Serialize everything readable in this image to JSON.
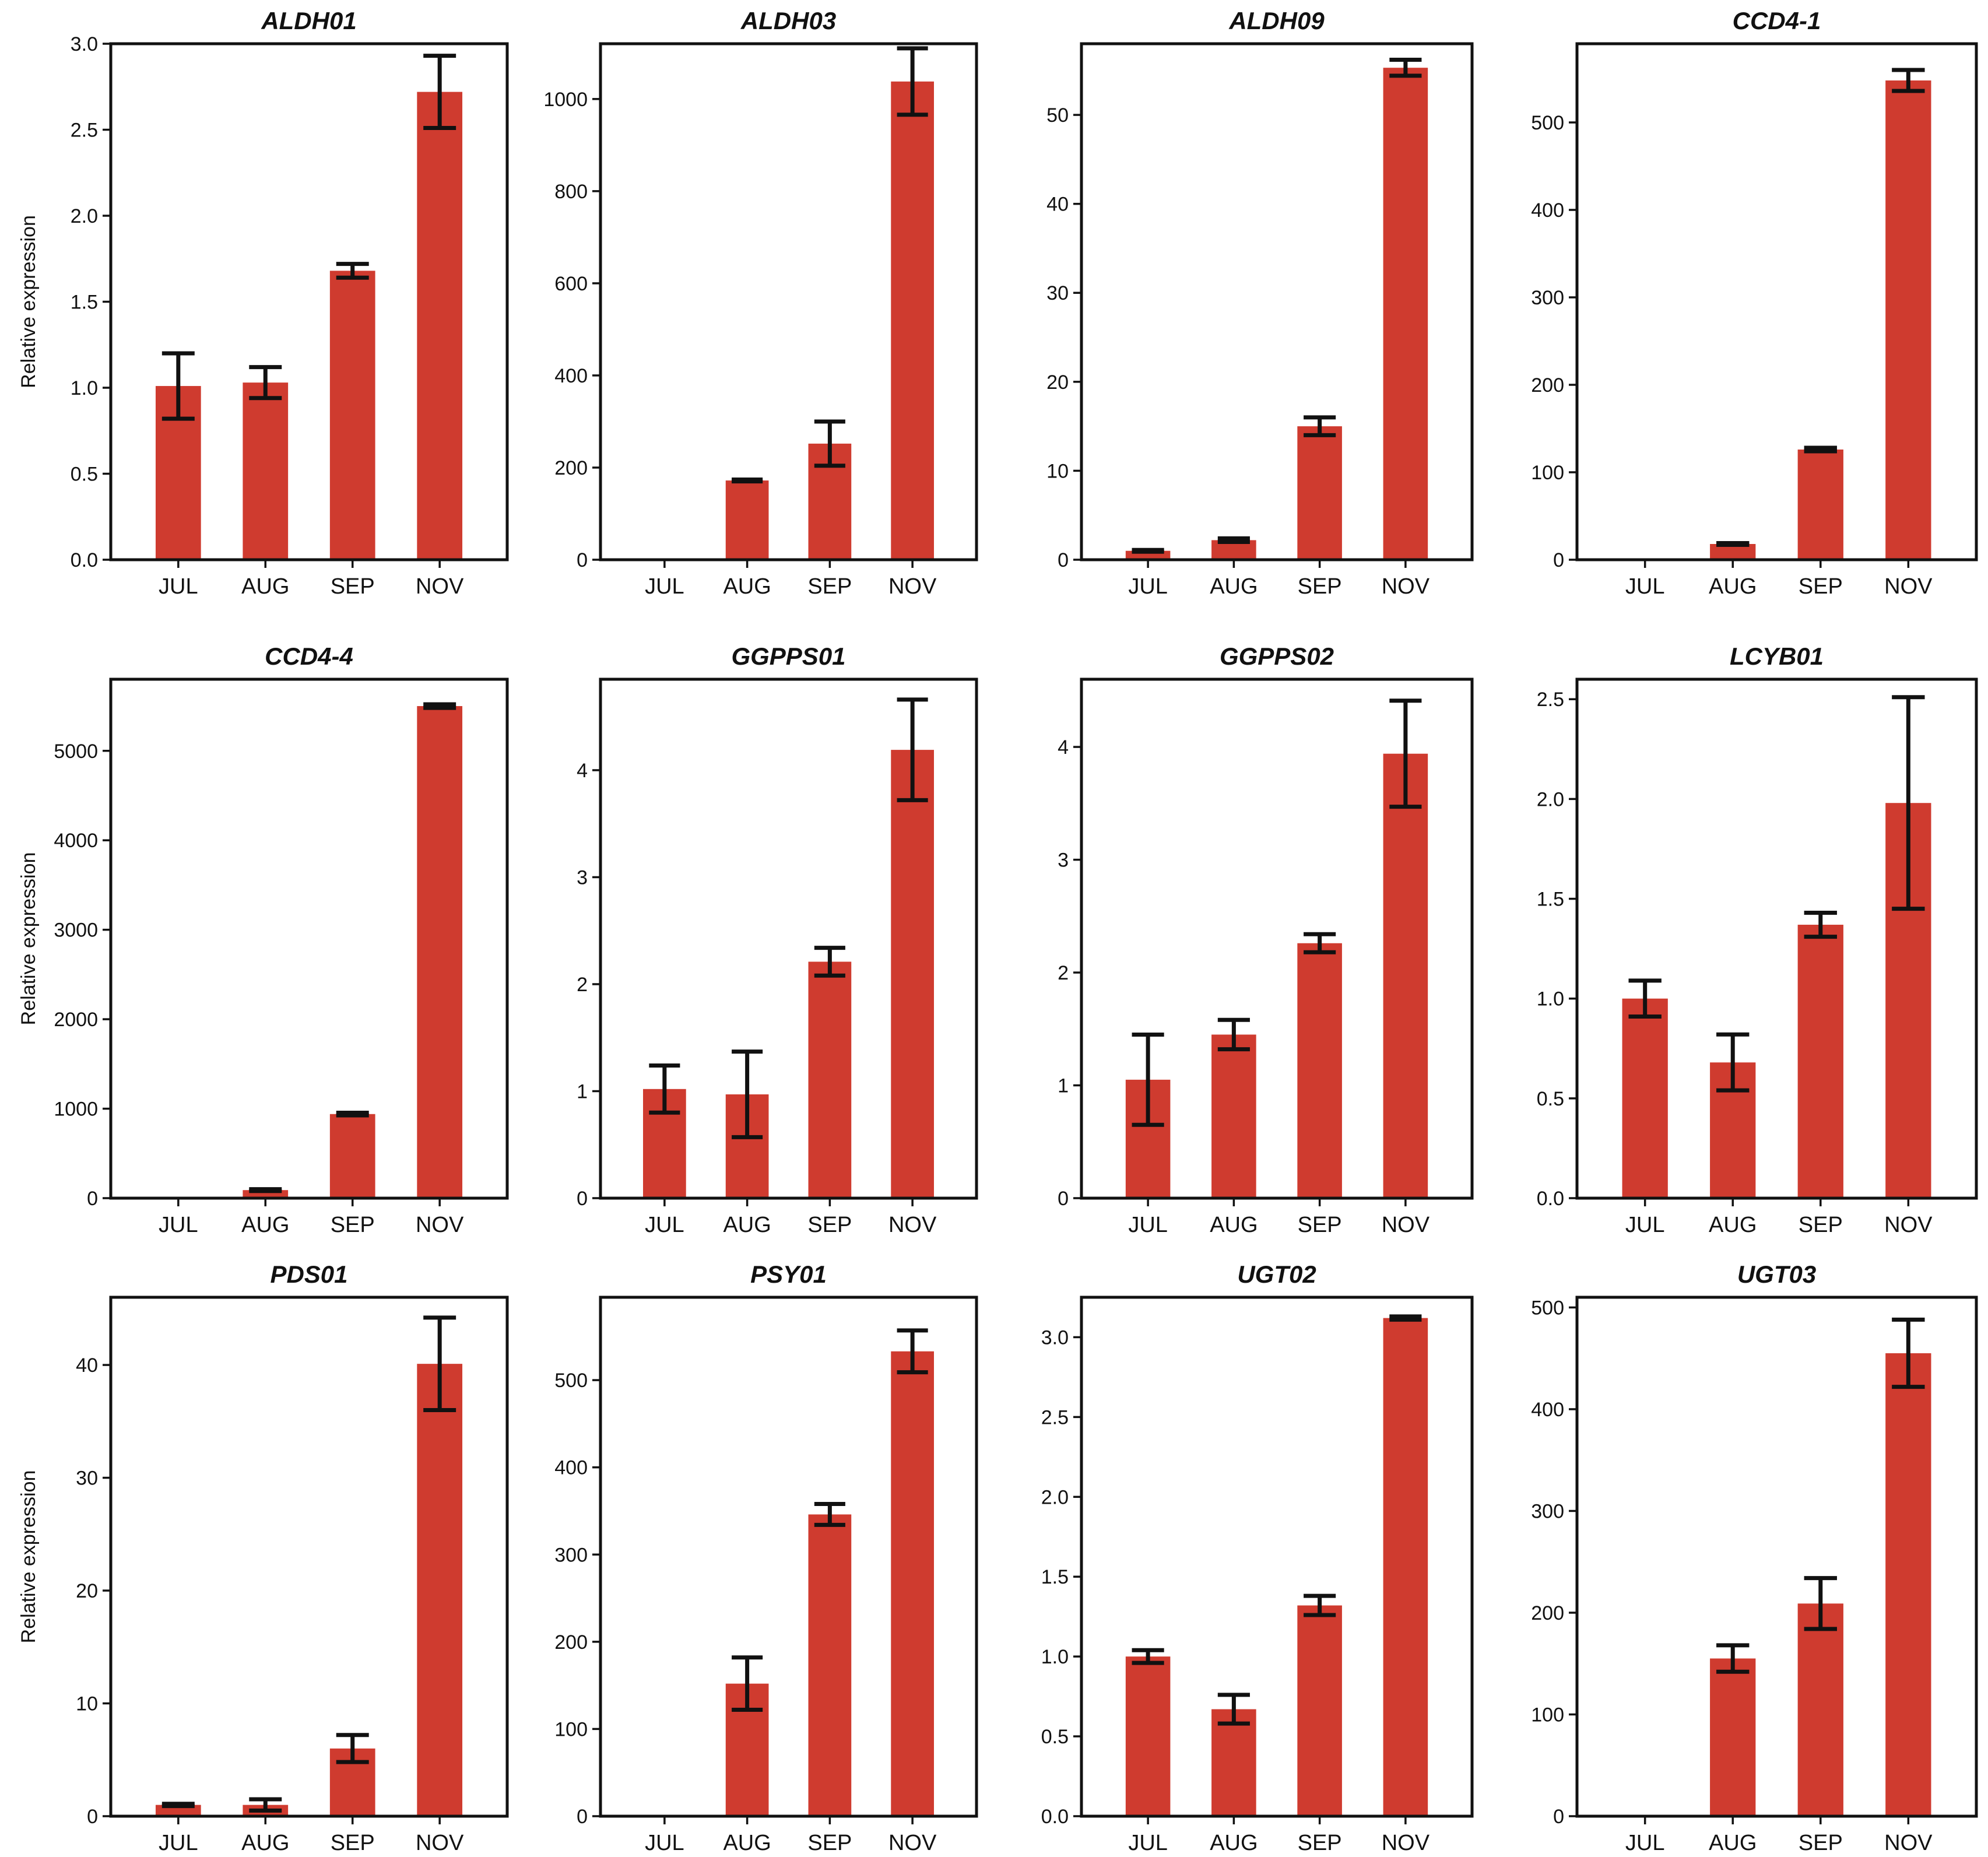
{
  "figure": {
    "bar_color": "#cf3b2f",
    "axis_color": "#111111",
    "categories": [
      "JUL",
      "AUG",
      "SEP",
      "NOV"
    ],
    "ylabel": "Relative expression"
  },
  "chart_data": [
    {
      "type": "bar",
      "title": "ALDH01",
      "ylabel": "Relative expression",
      "categories": [
        "JUL",
        "AUG",
        "SEP",
        "NOV"
      ],
      "values": [
        1.01,
        1.03,
        1.68,
        2.72
      ],
      "errors": [
        0.19,
        0.09,
        0.04,
        0.21
      ],
      "ylim": [
        0,
        3.0
      ],
      "yticks": [
        0.0,
        0.5,
        1.0,
        1.5,
        2.0,
        2.5,
        3.0
      ],
      "ytick_labels": [
        "0.0",
        "0.5",
        "1.0",
        "1.5",
        "2.0",
        "2.5",
        "3.0"
      ]
    },
    {
      "type": "bar",
      "title": "ALDH03",
      "ylabel": "",
      "categories": [
        "JUL",
        "AUG",
        "SEP",
        "NOV"
      ],
      "values": [
        1,
        172,
        252,
        1038
      ],
      "errors": [
        0,
        2,
        48,
        72
      ],
      "ylim": [
        0,
        1120
      ],
      "yticks": [
        0,
        200,
        400,
        600,
        800,
        1000
      ],
      "ytick_labels": [
        "0",
        "200",
        "400",
        "600",
        "800",
        "1000"
      ]
    },
    {
      "type": "bar",
      "title": "ALDH09",
      "ylabel": "",
      "categories": [
        "JUL",
        "AUG",
        "SEP",
        "NOV"
      ],
      "values": [
        1.0,
        2.2,
        15.0,
        55.3
      ],
      "errors": [
        0.1,
        0.2,
        1.0,
        0.9
      ],
      "ylim": [
        0,
        58
      ],
      "yticks": [
        0,
        10,
        20,
        30,
        40,
        50
      ],
      "ytick_labels": [
        "0",
        "10",
        "20",
        "30",
        "40",
        "50"
      ]
    },
    {
      "type": "bar",
      "title": "CCD4-1",
      "ylabel": "",
      "categories": [
        "JUL",
        "AUG",
        "SEP",
        "NOV"
      ],
      "values": [
        1,
        18,
        126,
        548
      ],
      "errors": [
        0,
        1,
        2,
        12
      ],
      "ylim": [
        0,
        590
      ],
      "yticks": [
        0,
        100,
        200,
        300,
        400,
        500
      ],
      "ytick_labels": [
        "0",
        "100",
        "200",
        "300",
        "400",
        "500"
      ]
    },
    {
      "type": "bar",
      "title": "CCD4-4",
      "ylabel": "Relative expression",
      "categories": [
        "JUL",
        "AUG",
        "SEP",
        "NOV"
      ],
      "values": [
        1,
        90,
        940,
        5500
      ],
      "errors": [
        0,
        10,
        15,
        20
      ],
      "ylim": [
        0,
        5800
      ],
      "yticks": [
        0,
        1000,
        2000,
        3000,
        4000,
        5000
      ],
      "ytick_labels": [
        "0",
        "1000",
        "2000",
        "3000",
        "4000",
        "5000"
      ]
    },
    {
      "type": "bar",
      "title": "GGPPS01",
      "ylabel": "",
      "categories": [
        "JUL",
        "AUG",
        "SEP",
        "NOV"
      ],
      "values": [
        1.02,
        0.97,
        2.21,
        4.19
      ],
      "errors": [
        0.22,
        0.4,
        0.13,
        0.47
      ],
      "ylim": [
        0,
        4.85
      ],
      "yticks": [
        0,
        1,
        2,
        3,
        4
      ],
      "ytick_labels": [
        "0",
        "1",
        "2",
        "3",
        "4"
      ]
    },
    {
      "type": "bar",
      "title": "GGPPS02",
      "ylabel": "",
      "categories": [
        "JUL",
        "AUG",
        "SEP",
        "NOV"
      ],
      "values": [
        1.05,
        1.45,
        2.26,
        3.94
      ],
      "errors": [
        0.4,
        0.13,
        0.08,
        0.47
      ],
      "ylim": [
        0,
        4.6
      ],
      "yticks": [
        0,
        1,
        2,
        3,
        4
      ],
      "ytick_labels": [
        "0",
        "1",
        "2",
        "3",
        "4"
      ]
    },
    {
      "type": "bar",
      "title": "LCYB01",
      "ylabel": "",
      "categories": [
        "JUL",
        "AUG",
        "SEP",
        "NOV"
      ],
      "values": [
        1.0,
        0.68,
        1.37,
        1.98
      ],
      "errors": [
        0.09,
        0.14,
        0.06,
        0.53
      ],
      "ylim": [
        0,
        2.6
      ],
      "yticks": [
        0.0,
        0.5,
        1.0,
        1.5,
        2.0,
        2.5
      ],
      "ytick_labels": [
        "0.0",
        "0.5",
        "1.0",
        "1.5",
        "2.0",
        "2.5"
      ]
    },
    {
      "type": "bar",
      "title": "PDS01",
      "ylabel": "Relative expression",
      "categories": [
        "JUL",
        "AUG",
        "SEP",
        "NOV"
      ],
      "values": [
        1.0,
        1.0,
        6.0,
        40.1
      ],
      "errors": [
        0.1,
        0.5,
        1.2,
        4.1
      ],
      "ylim": [
        0,
        46
      ],
      "yticks": [
        0,
        10,
        20,
        30,
        40
      ],
      "ytick_labels": [
        "0",
        "10",
        "20",
        "30",
        "40"
      ]
    },
    {
      "type": "bar",
      "title": "PSY01",
      "ylabel": "",
      "categories": [
        "JUL",
        "AUG",
        "SEP",
        "NOV"
      ],
      "values": [
        1,
        152,
        346,
        533
      ],
      "errors": [
        0,
        30,
        12,
        24
      ],
      "ylim": [
        0,
        595
      ],
      "yticks": [
        0,
        100,
        200,
        300,
        400,
        500
      ],
      "ytick_labels": [
        "0",
        "100",
        "200",
        "300",
        "400",
        "500"
      ]
    },
    {
      "type": "bar",
      "title": "UGT02",
      "ylabel": "",
      "categories": [
        "JUL",
        "AUG",
        "SEP",
        "NOV"
      ],
      "values": [
        1.0,
        0.67,
        1.32,
        3.12
      ],
      "errors": [
        0.04,
        0.09,
        0.06,
        0.01
      ],
      "ylim": [
        0,
        3.25
      ],
      "yticks": [
        0.0,
        0.5,
        1.0,
        1.5,
        2.0,
        2.5,
        3.0
      ],
      "ytick_labels": [
        "0.0",
        "0.5",
        "1.0",
        "1.5",
        "2.0",
        "2.5",
        "3.0"
      ]
    },
    {
      "type": "bar",
      "title": "UGT03",
      "ylabel": "",
      "categories": [
        "JUL",
        "AUG",
        "SEP",
        "NOV"
      ],
      "values": [
        1,
        155,
        209,
        455
      ],
      "errors": [
        0,
        13,
        25,
        33
      ],
      "ylim": [
        0,
        510
      ],
      "yticks": [
        0,
        100,
        200,
        300,
        400,
        500
      ],
      "ytick_labels": [
        "0",
        "100",
        "200",
        "300",
        "400",
        "500"
      ]
    }
  ]
}
